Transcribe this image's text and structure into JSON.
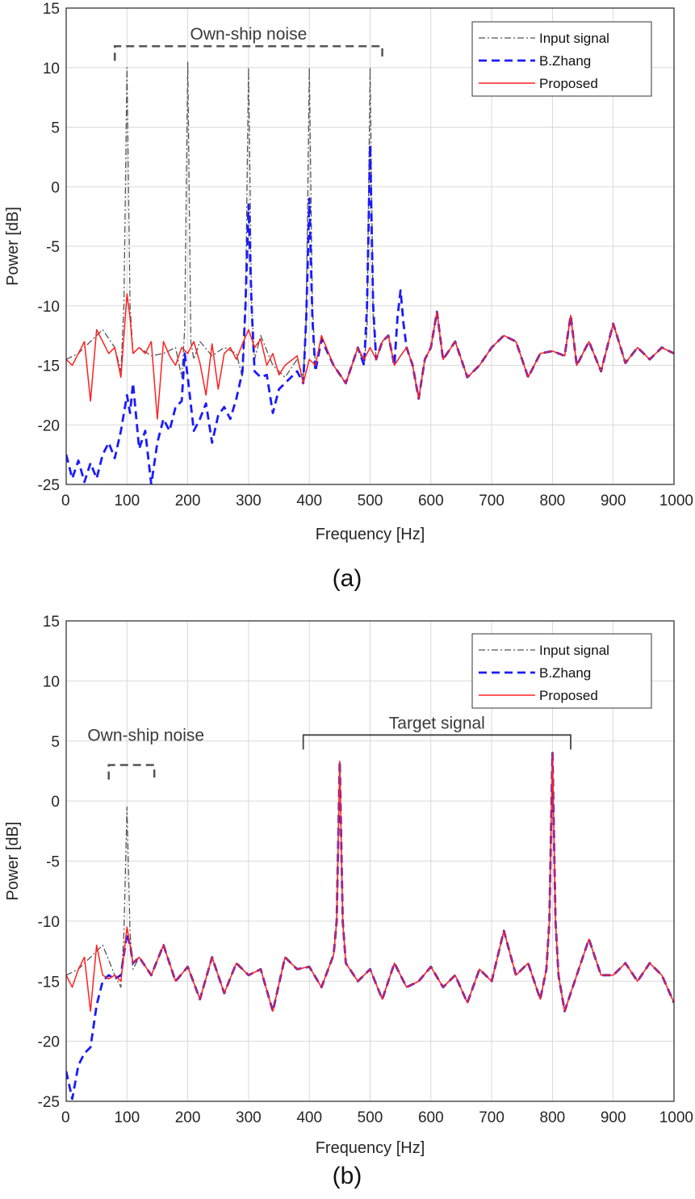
{
  "chart_data": [
    {
      "type": "line",
      "caption": "(a)",
      "xlabel": "Frequency [Hz]",
      "ylabel": "Power [dB]",
      "xlim": [
        0,
        1000
      ],
      "ylim": [
        -25,
        15
      ],
      "xticks": [
        0,
        100,
        200,
        300,
        400,
        500,
        600,
        700,
        800,
        900,
        1000
      ],
      "yticks": [
        15,
        10,
        5,
        0,
        -5,
        -10,
        -15,
        -20,
        -25
      ],
      "grid": true,
      "legend_position": "top-right",
      "annotations": [
        {
          "text": "Own-ship noise",
          "type": "dashed-bracket",
          "x_range": [
            80,
            520
          ],
          "y": 11.8
        }
      ],
      "series": [
        {
          "name": "Input signal",
          "color": "#555555",
          "style": "dash-dot",
          "x": [
            0,
            20,
            40,
            60,
            80,
            90,
            95,
            100,
            105,
            110,
            120,
            140,
            160,
            180,
            190,
            195,
            200,
            205,
            210,
            220,
            240,
            260,
            280,
            290,
            295,
            300,
            305,
            310,
            320,
            340,
            360,
            380,
            390,
            395,
            400,
            405,
            410,
            420,
            440,
            460,
            480,
            490,
            495,
            500,
            505,
            510,
            520,
            530,
            540,
            550,
            560,
            570,
            580,
            590,
            600,
            610,
            620,
            640,
            660,
            680,
            700,
            720,
            740,
            760,
            780,
            800,
            820,
            830,
            840,
            860,
            880,
            900,
            920,
            940,
            960,
            980,
            1000
          ],
          "y": [
            -14.5,
            -14,
            -13,
            -12,
            -13.5,
            -15.5,
            -10,
            10,
            -10,
            -14,
            -13.5,
            -14.2,
            -14,
            -13.5,
            -16,
            -12,
            10.5,
            -13,
            -14.5,
            -13,
            -14.2,
            -13.5,
            -14,
            -16,
            -10,
            10,
            -10,
            -14.5,
            -12.5,
            -15,
            -16,
            -14.5,
            -16,
            -11,
            10,
            -10,
            -15,
            -12.5,
            -15,
            -16.5,
            -13.5,
            -15,
            -12,
            10,
            -11,
            -14.5,
            -13,
            -12.5,
            -15,
            -14.2,
            -13.5,
            -15,
            -17.8,
            -14.5,
            -13.5,
            -10.5,
            -14.5,
            -13,
            -16,
            -15,
            -13.5,
            -12.5,
            -13,
            -16,
            -14,
            -13.8,
            -14.2,
            -10.8,
            -15,
            -13,
            -15.5,
            -11.5,
            -14.8,
            -13.5,
            -14.5,
            -13.5,
            -14
          ]
        },
        {
          "name": "B.Zhang",
          "color": "#1a1aff",
          "style": "dashed",
          "x": [
            0,
            10,
            20,
            30,
            40,
            50,
            60,
            70,
            80,
            90,
            100,
            105,
            110,
            120,
            130,
            140,
            150,
            160,
            170,
            180,
            190,
            195,
            200,
            210,
            220,
            230,
            240,
            250,
            260,
            270,
            280,
            290,
            295,
            300,
            305,
            310,
            320,
            330,
            340,
            350,
            360,
            380,
            390,
            395,
            400,
            405,
            410,
            420,
            440,
            460,
            480,
            490,
            495,
            500,
            505,
            510,
            520,
            530,
            540,
            545,
            550,
            555,
            560,
            570,
            580,
            590,
            600,
            610,
            620,
            640,
            660,
            680,
            700,
            720,
            740,
            760,
            780,
            800,
            820,
            830,
            840,
            860,
            880,
            900,
            920,
            940,
            960,
            980,
            1000
          ],
          "y": [
            -22.5,
            -24.5,
            -23,
            -24.8,
            -23.2,
            -24.5,
            -22.5,
            -21.5,
            -22.8,
            -20.5,
            -17.5,
            -19,
            -16.5,
            -22,
            -20.5,
            -25,
            -21.5,
            -19.5,
            -20.5,
            -18.5,
            -18,
            -14,
            -16,
            -20.5,
            -19.5,
            -18.2,
            -21.5,
            -19.2,
            -18.5,
            -19.5,
            -17.8,
            -15.5,
            -10,
            -1.5,
            -10,
            -15.5,
            -16,
            -15.8,
            -19,
            -17,
            -16.5,
            -15.5,
            -16.5,
            -11,
            -1,
            -11,
            -15.5,
            -12.8,
            -15,
            -16.5,
            -13.5,
            -15,
            -10,
            3.5,
            -10,
            -14.5,
            -13,
            -12.5,
            -15,
            -11,
            -8.7,
            -11.5,
            -13.5,
            -15,
            -17.8,
            -14.5,
            -13.5,
            -10.5,
            -14.5,
            -13,
            -16,
            -15,
            -13.5,
            -12.5,
            -13,
            -16,
            -14,
            -13.8,
            -14.2,
            -10.8,
            -15,
            -13,
            -15.5,
            -11.5,
            -14.8,
            -13.5,
            -14.5,
            -13.5,
            -14
          ]
        },
        {
          "name": "Proposed",
          "color": "#ff2020",
          "style": "solid",
          "x": [
            0,
            10,
            20,
            30,
            40,
            50,
            60,
            70,
            80,
            90,
            100,
            105,
            110,
            120,
            130,
            140,
            150,
            160,
            170,
            180,
            190,
            200,
            210,
            220,
            230,
            240,
            250,
            260,
            270,
            280,
            290,
            300,
            310,
            320,
            330,
            340,
            350,
            360,
            380,
            390,
            400,
            410,
            420,
            440,
            460,
            480,
            490,
            500,
            510,
            520,
            530,
            540,
            550,
            560,
            570,
            580,
            590,
            600,
            610,
            620,
            640,
            660,
            680,
            700,
            720,
            740,
            760,
            780,
            800,
            820,
            830,
            840,
            860,
            880,
            900,
            920,
            940,
            960,
            980,
            1000
          ],
          "y": [
            -14.5,
            -15,
            -14,
            -13,
            -18,
            -12,
            -13,
            -14,
            -13.5,
            -16,
            -9,
            -11,
            -14,
            -13.5,
            -14,
            -13,
            -19.5,
            -13,
            -14.2,
            -15,
            -13.5,
            -14,
            -13,
            -14.8,
            -17.5,
            -13.2,
            -17,
            -14,
            -13.5,
            -14.5,
            -13.2,
            -12,
            -13.5,
            -12.8,
            -15,
            -14,
            -15.8,
            -15,
            -14.2,
            -16.5,
            -14.5,
            -15,
            -12.5,
            -15,
            -16.5,
            -13.5,
            -14.5,
            -13.5,
            -14.5,
            -13,
            -12.5,
            -15,
            -14.2,
            -13.5,
            -15,
            -17.8,
            -14.5,
            -13.5,
            -10.5,
            -14.5,
            -13,
            -16,
            -15,
            -13.5,
            -12.5,
            -13,
            -16,
            -14,
            -13.8,
            -14.2,
            -10.8,
            -15,
            -13,
            -15.5,
            -11.5,
            -14.8,
            -13.5,
            -14.5,
            -13.5,
            -14
          ]
        }
      ]
    },
    {
      "type": "line",
      "caption": "(b)",
      "xlabel": "Frequency [Hz]",
      "ylabel": "Power [dB]",
      "xlim": [
        0,
        1000
      ],
      "ylim": [
        -25,
        15
      ],
      "xticks": [
        0,
        100,
        200,
        300,
        400,
        500,
        600,
        700,
        800,
        900,
        1000
      ],
      "yticks": [
        15,
        10,
        5,
        0,
        -5,
        -10,
        -15,
        -20,
        -25
      ],
      "grid": true,
      "legend_position": "top-right",
      "annotations": [
        {
          "text": "Own-ship noise",
          "type": "dashed-bracket",
          "x_range": [
            70,
            145
          ],
          "y": 3
        },
        {
          "text": "Target signal",
          "type": "solid-bracket",
          "x_range": [
            390,
            830
          ],
          "y": 5.5
        }
      ],
      "series": [
        {
          "name": "Input signal",
          "color": "#555555",
          "style": "dash-dot",
          "x": [
            0,
            20,
            40,
            60,
            80,
            90,
            95,
            100,
            105,
            110,
            120,
            140,
            160,
            180,
            200,
            220,
            240,
            260,
            280,
            300,
            320,
            340,
            360,
            380,
            400,
            420,
            440,
            445,
            450,
            455,
            460,
            480,
            500,
            520,
            540,
            560,
            580,
            600,
            620,
            640,
            660,
            680,
            700,
            720,
            740,
            760,
            780,
            790,
            795,
            800,
            805,
            810,
            820,
            840,
            860,
            880,
            900,
            920,
            940,
            960,
            980,
            1000
          ],
          "y": [
            -14.5,
            -14,
            -13,
            -12,
            -14.5,
            -15.5,
            -11,
            -0.5,
            -11,
            -14,
            -13,
            -14.5,
            -12,
            -15,
            -13.8,
            -16.5,
            -13,
            -16,
            -13.5,
            -14.5,
            -14,
            -17.5,
            -13,
            -14,
            -13.8,
            -15.5,
            -12.8,
            -10,
            3.3,
            -10,
            -13.5,
            -15,
            -14,
            -16.5,
            -13.5,
            -15.5,
            -15,
            -13.8,
            -15.5,
            -14.5,
            -16.8,
            -14,
            -15,
            -10.8,
            -14.5,
            -13.5,
            -16.5,
            -14,
            -10,
            4,
            -10,
            -14.5,
            -17.5,
            -14.5,
            -11.5,
            -14.5,
            -14.5,
            -13.5,
            -15,
            -13.5,
            -14.5,
            -16.8
          ]
        },
        {
          "name": "B.Zhang",
          "color": "#1a1aff",
          "style": "dashed",
          "x": [
            0,
            10,
            20,
            30,
            40,
            50,
            60,
            70,
            80,
            90,
            100,
            105,
            110,
            120,
            140,
            160,
            180,
            200,
            220,
            240,
            260,
            280,
            300,
            320,
            340,
            360,
            380,
            400,
            420,
            440,
            445,
            450,
            455,
            460,
            480,
            500,
            520,
            540,
            560,
            580,
            600,
            620,
            640,
            660,
            680,
            700,
            720,
            740,
            760,
            780,
            790,
            795,
            800,
            805,
            810,
            820,
            840,
            860,
            880,
            900,
            920,
            940,
            960,
            980,
            1000
          ],
          "y": [
            -22.5,
            -24.8,
            -22,
            -21,
            -20.5,
            -17,
            -15,
            -14.5,
            -14.8,
            -14.5,
            -11,
            -12,
            -13.5,
            -13,
            -14.5,
            -12,
            -15,
            -13.8,
            -16.5,
            -13,
            -16,
            -13.5,
            -14.5,
            -14,
            -17.5,
            -13,
            -14,
            -13.8,
            -15.5,
            -12.8,
            -10,
            3.3,
            -10,
            -13.5,
            -15,
            -14,
            -16.5,
            -13.5,
            -15.5,
            -15,
            -13.8,
            -15.5,
            -14.5,
            -16.8,
            -14,
            -15,
            -10.8,
            -14.5,
            -13.5,
            -16.5,
            -14,
            -10,
            4,
            -10,
            -14.5,
            -17.5,
            -14.5,
            -11.5,
            -14.5,
            -14.5,
            -13.5,
            -15,
            -13.5,
            -14.5,
            -16.8
          ]
        },
        {
          "name": "Proposed",
          "color": "#ff2020",
          "style": "solid",
          "x": [
            0,
            10,
            20,
            30,
            40,
            50,
            60,
            70,
            80,
            90,
            100,
            105,
            110,
            120,
            140,
            160,
            180,
            200,
            220,
            240,
            260,
            280,
            300,
            320,
            340,
            360,
            380,
            400,
            420,
            440,
            445,
            450,
            455,
            460,
            480,
            500,
            520,
            540,
            560,
            580,
            600,
            620,
            640,
            660,
            680,
            700,
            720,
            740,
            760,
            780,
            790,
            795,
            800,
            805,
            810,
            820,
            840,
            860,
            880,
            900,
            920,
            940,
            960,
            980,
            1000
          ],
          "y": [
            -14.5,
            -15.5,
            -14,
            -13,
            -17.5,
            -12,
            -14.5,
            -14.8,
            -14.5,
            -15,
            -10.5,
            -12,
            -13.5,
            -13,
            -14.5,
            -12,
            -15,
            -13.8,
            -16.5,
            -13,
            -16,
            -13.5,
            -14.5,
            -14,
            -17.5,
            -13,
            -14,
            -13.8,
            -15.5,
            -12.8,
            -10,
            3.3,
            -10,
            -13.5,
            -15,
            -14,
            -16.5,
            -13.5,
            -15.5,
            -15,
            -13.8,
            -15.5,
            -14.5,
            -16.8,
            -14,
            -15,
            -10.8,
            -14.5,
            -13.5,
            -16.5,
            -14,
            -10,
            4,
            -10,
            -14.5,
            -17.5,
            -14.5,
            -11.5,
            -14.5,
            -14.5,
            -13.5,
            -15,
            -13.5,
            -14.5,
            -16.8
          ]
        }
      ]
    }
  ]
}
